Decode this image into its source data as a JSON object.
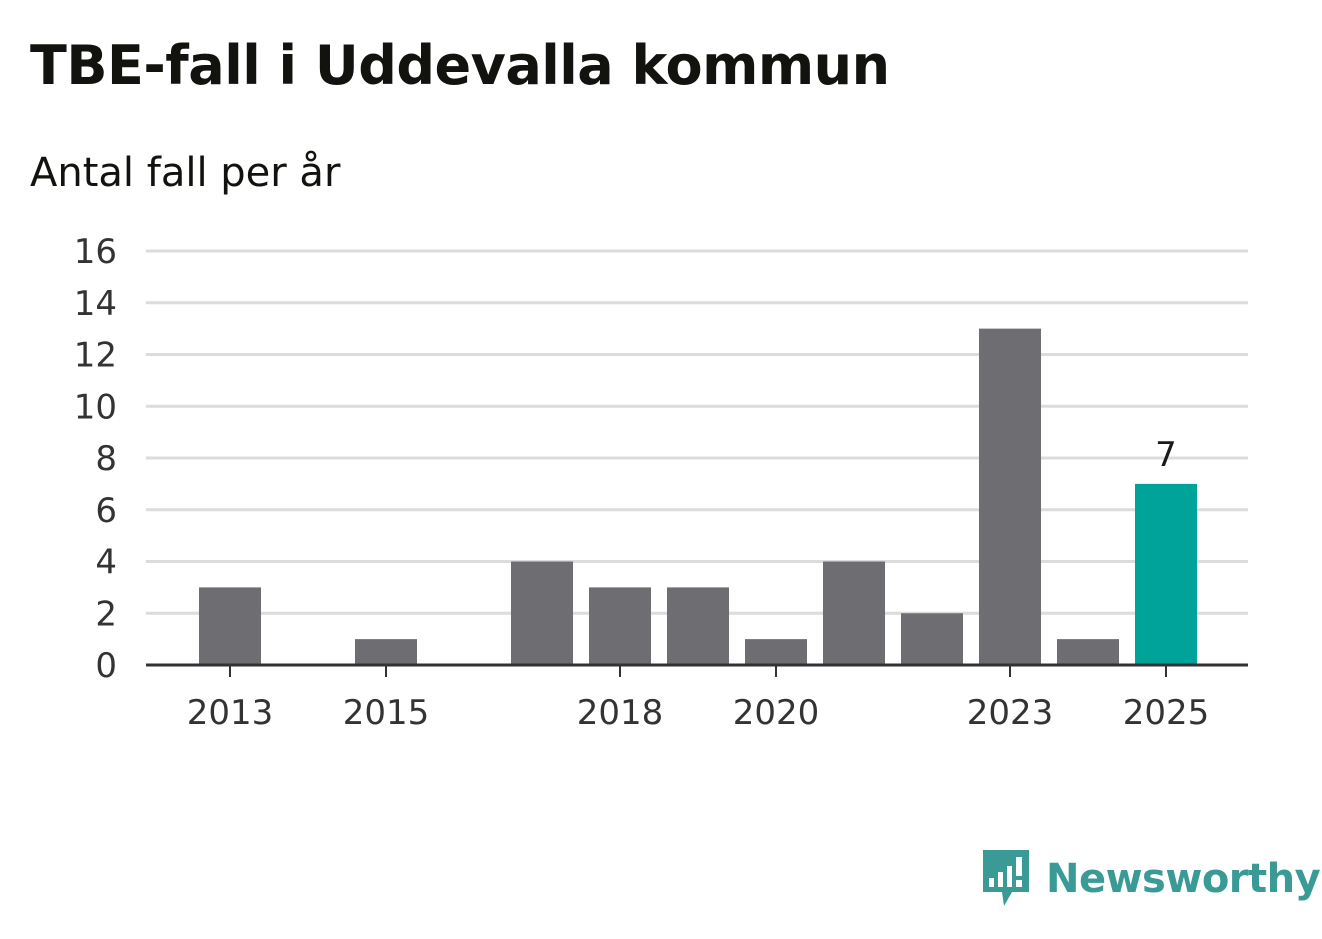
{
  "chart_data": {
    "type": "bar",
    "title": "TBE-fall i Uddevalla kommun",
    "subtitle": "Antal fall per år",
    "xlabel": "",
    "ylabel": "",
    "categories": [
      "2013",
      "2014",
      "2015",
      "2016",
      "2017",
      "2018",
      "2019",
      "2020",
      "2021",
      "2022",
      "2023",
      "2024",
      "2025"
    ],
    "x_tick_labels": [
      "2013",
      "2015",
      "2018",
      "2020",
      "2023",
      "2025"
    ],
    "values": [
      3,
      0,
      1,
      0,
      4,
      3,
      3,
      1,
      4,
      2,
      13,
      1,
      7
    ],
    "ylim": [
      0,
      16
    ],
    "y_ticks": [
      0,
      2,
      4,
      6,
      8,
      10,
      12,
      14,
      16
    ],
    "grid": true,
    "highlight": {
      "category": "2025",
      "label": "7"
    },
    "colors": {
      "bar": "#6e6d72",
      "highlight": "#00a39a",
      "grid": "#dcdcdc",
      "axis": "#333333"
    }
  },
  "brand": {
    "name": "Newsworthy",
    "icon": "newsworthy-logo-icon",
    "color": "#3a9a95"
  }
}
